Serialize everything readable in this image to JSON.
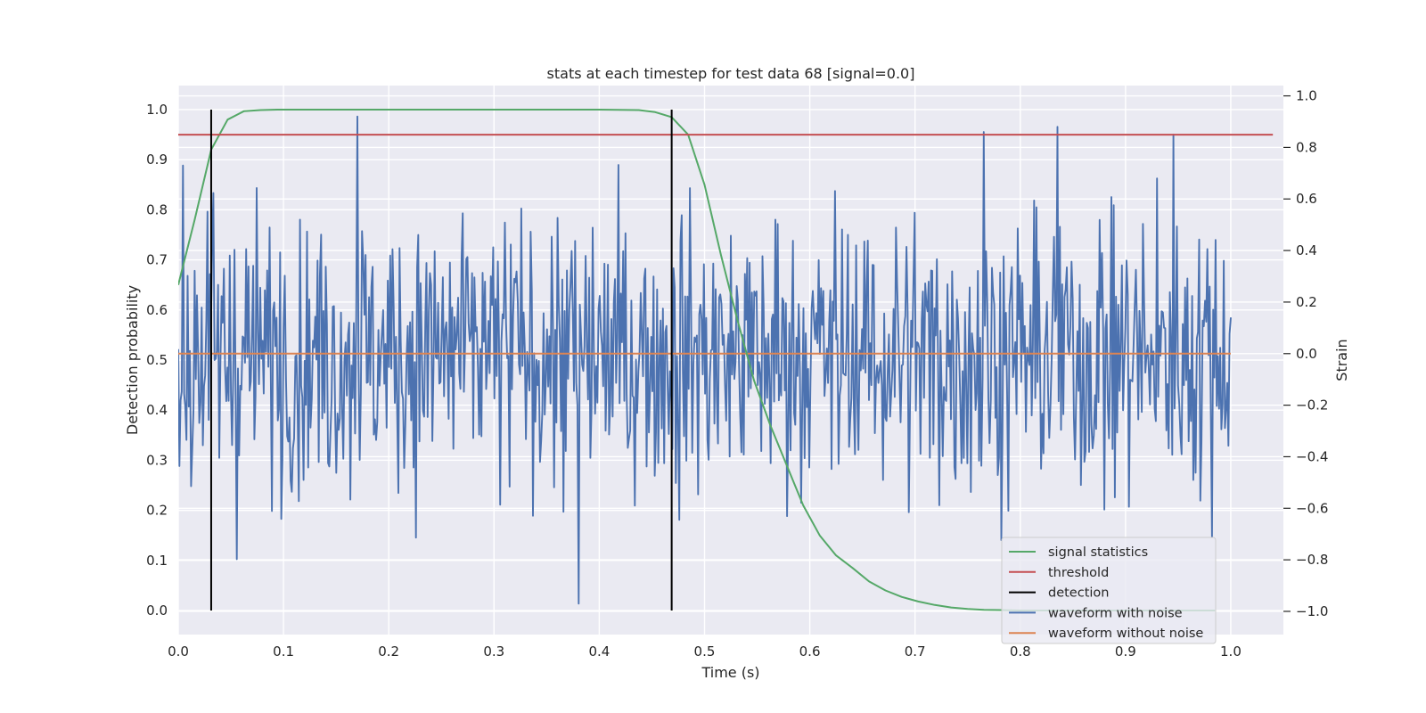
{
  "chart_data": {
    "type": "line",
    "title": "stats at each timestep for test data 68 [signal=0.0]",
    "xlabel": "Time (s)",
    "ylabel_left": "Detection probability",
    "ylabel_right": "Strain",
    "xlim": [
      0.0,
      1.05
    ],
    "ylim_left": [
      -0.048,
      1.048
    ],
    "ylim_right": [
      -1.09,
      1.04
    ],
    "x_ticks": [
      0.0,
      0.1,
      0.2,
      0.3,
      0.4,
      0.5,
      0.6,
      0.7,
      0.8,
      0.9,
      1.0
    ],
    "x_tick_labels": [
      "0.0",
      "0.1",
      "0.2",
      "0.3",
      "0.4",
      "0.5",
      "0.6",
      "0.7",
      "0.8",
      "0.9",
      "1.0"
    ],
    "y_left_ticks": [
      0.0,
      0.1,
      0.2,
      0.3,
      0.4,
      0.5,
      0.6,
      0.7,
      0.8,
      0.9,
      1.0
    ],
    "y_left_tick_labels": [
      "0.0",
      "0.1",
      "0.2",
      "0.3",
      "0.4",
      "0.5",
      "0.6",
      "0.7",
      "0.8",
      "0.9",
      "1.0"
    ],
    "y_right_ticks": [
      -1.0,
      -0.8,
      -0.6,
      -0.4,
      -0.2,
      0.0,
      0.2,
      0.4,
      0.6,
      0.8,
      1.0
    ],
    "y_right_tick_labels": [
      "−1.0",
      "−0.8",
      "−0.6",
      "−0.4",
      "−0.2",
      "0.0",
      "0.2",
      "0.4",
      "0.6",
      "0.8",
      "1.0"
    ],
    "grid": true,
    "legend_position": "bottom-right",
    "background": "#eaeaf2",
    "series": [
      {
        "name": "signal statistics",
        "axis": "left",
        "color": "#55a868",
        "x": [
          0.0,
          0.0156,
          0.0313,
          0.0469,
          0.0625,
          0.0781,
          0.0938,
          0.125,
          0.2,
          0.3,
          0.4,
          0.4375,
          0.4531,
          0.4688,
          0.4844,
          0.5,
          0.5156,
          0.5313,
          0.5469,
          0.5625,
          0.5781,
          0.5938,
          0.6094,
          0.625,
          0.6406,
          0.6563,
          0.6719,
          0.6875,
          0.7031,
          0.7188,
          0.7344,
          0.75,
          0.7656,
          0.7813,
          0.8,
          0.85,
          0.9,
          0.95,
          0.985
        ],
        "y": [
          0.65,
          0.78,
          0.92,
          0.98,
          0.997,
          0.999,
          1.0,
          1.0,
          1.0,
          1.0,
          1.0,
          0.999,
          0.995,
          0.985,
          0.95,
          0.85,
          0.71,
          0.58,
          0.46,
          0.37,
          0.29,
          0.21,
          0.15,
          0.11,
          0.085,
          0.058,
          0.04,
          0.027,
          0.018,
          0.011,
          0.006,
          0.003,
          0.0015,
          0.001,
          0.0,
          0.0,
          0.0,
          0.0,
          0.0
        ]
      },
      {
        "name": "threshold",
        "axis": "left",
        "color": "#c44e52",
        "x": [
          0.0,
          1.04
        ],
        "y": [
          0.95,
          0.95
        ]
      },
      {
        "name": "detection",
        "axis": "left",
        "color": "#000000",
        "segments": [
          {
            "x": 0.0313,
            "y": [
              0.0,
              1.0
            ]
          },
          {
            "x": 0.4688,
            "y": [
              0.0,
              1.0
            ]
          }
        ]
      },
      {
        "name": "waveform with noise",
        "axis": "right",
        "color": "#4c72b0",
        "x_range": [
          0.0,
          1.0
        ],
        "sample_count": 900,
        "approx_std": 0.27,
        "approx_min": -0.97,
        "approx_max": 0.93,
        "notable_points": [
          {
            "x": 0.005,
            "y": 0.73
          },
          {
            "x": 0.17,
            "y": 0.92
          },
          {
            "x": 0.38,
            "y": -0.97
          },
          {
            "x": 0.765,
            "y": 0.86
          },
          {
            "x": 0.835,
            "y": 0.88
          },
          {
            "x": 0.945,
            "y": 0.85
          }
        ]
      },
      {
        "name": "waveform without noise",
        "axis": "right",
        "color": "#dd8452",
        "x": [
          0.0,
          1.0
        ],
        "y": [
          0.0,
          0.0
        ]
      }
    ]
  }
}
